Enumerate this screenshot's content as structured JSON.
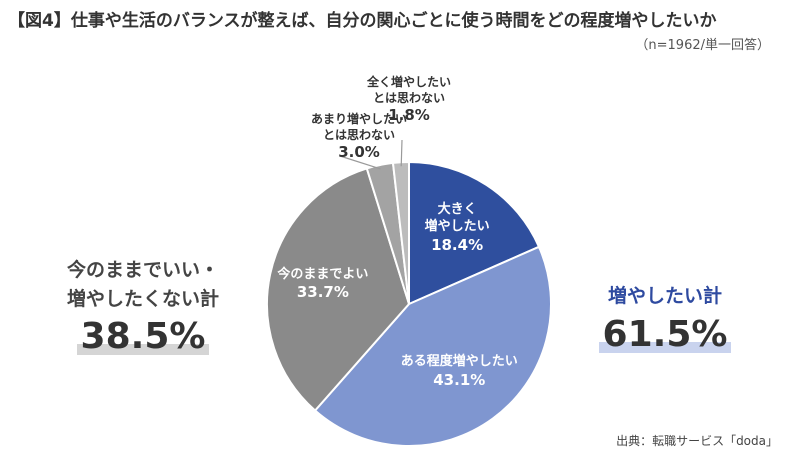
{
  "title": "【図4】仕事や生活のバランスが整えば、自分の関心ごとに使う時間をどの程度増やしたいか",
  "subtitle": "（n=1962/単一回答）",
  "chart_data": {
    "type": "pie",
    "start_angle_deg": 0,
    "direction": "clockwise",
    "slices": [
      {
        "label": [
          "大きく",
          "増やしたい"
        ],
        "value": 18.4,
        "display": "18.4%",
        "color": "#2f4f9e",
        "label_position": "inside"
      },
      {
        "label": [
          "ある程度増やしたい"
        ],
        "value": 43.1,
        "display": "43.1%",
        "color": "#7f96d0",
        "label_position": "inside"
      },
      {
        "label": [
          "今のままでよい"
        ],
        "value": 33.7,
        "display": "33.7%",
        "color": "#8a8a8a",
        "label_position": "inside"
      },
      {
        "label": [
          "あまり増やしたい",
          "とは思わない"
        ],
        "value": 3.0,
        "display": "3.0%",
        "color": "#a3a3a3",
        "label_position": "outside"
      },
      {
        "label": [
          "全く増やしたい",
          "とは思わない"
        ],
        "value": 1.8,
        "display": "1.8%",
        "color": "#bcbcbc",
        "label_position": "outside"
      }
    ]
  },
  "summary_left": {
    "caption": [
      "今のままでいい・",
      "増やしたくない計"
    ],
    "value": "38.5%"
  },
  "summary_right": {
    "caption": [
      "増やしたい計"
    ],
    "value": "61.5%"
  },
  "source": "出典：転職サービス「doda」"
}
